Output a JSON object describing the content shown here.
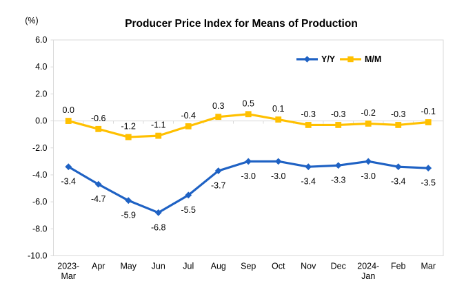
{
  "page": {
    "background": "#FFFFFF"
  },
  "chart_data": {
    "type": "line",
    "title": "Producer Price Index for Means of Production",
    "unit": "(%)",
    "categories": [
      "2023-Mar",
      "Apr",
      "May",
      "Jun",
      "Jul",
      "Aug",
      "Sep",
      "Oct",
      "Nov",
      "Dec",
      "2024-Jan",
      "Feb",
      "Mar"
    ],
    "category_display": [
      [
        "2023-",
        "Mar"
      ],
      [
        "Apr"
      ],
      [
        "May"
      ],
      [
        "Jun"
      ],
      [
        "Jul"
      ],
      [
        "Aug"
      ],
      [
        "Sep"
      ],
      [
        "Oct"
      ],
      [
        "Nov"
      ],
      [
        "Dec"
      ],
      [
        "2024-",
        "Jan"
      ],
      [
        "Feb"
      ],
      [
        "Mar"
      ]
    ],
    "series": [
      {
        "name": "Y/Y",
        "color": "#1F62C4",
        "marker": "diamond",
        "label_position": "below",
        "values": [
          -3.4,
          -4.7,
          -5.9,
          -6.8,
          -5.5,
          -3.7,
          -3.0,
          -3.0,
          -3.4,
          -3.3,
          -3.0,
          -3.4,
          -3.5
        ]
      },
      {
        "name": "M/M",
        "color": "#FFC000",
        "marker": "square",
        "label_position": "above",
        "values": [
          0.0,
          -0.6,
          -1.2,
          -1.1,
          -0.4,
          0.3,
          0.5,
          0.1,
          -0.3,
          -0.3,
          -0.2,
          -0.3,
          -0.1
        ]
      }
    ],
    "ylim": [
      -10,
      6
    ],
    "yticks": [
      6,
      4,
      2,
      0,
      -2,
      -4,
      -6,
      -8,
      -10
    ],
    "label_decimals": 1,
    "grid": false,
    "legend_position": "top-right-inside",
    "axis_color": "#D9D9D9",
    "text_color": "#000000"
  }
}
